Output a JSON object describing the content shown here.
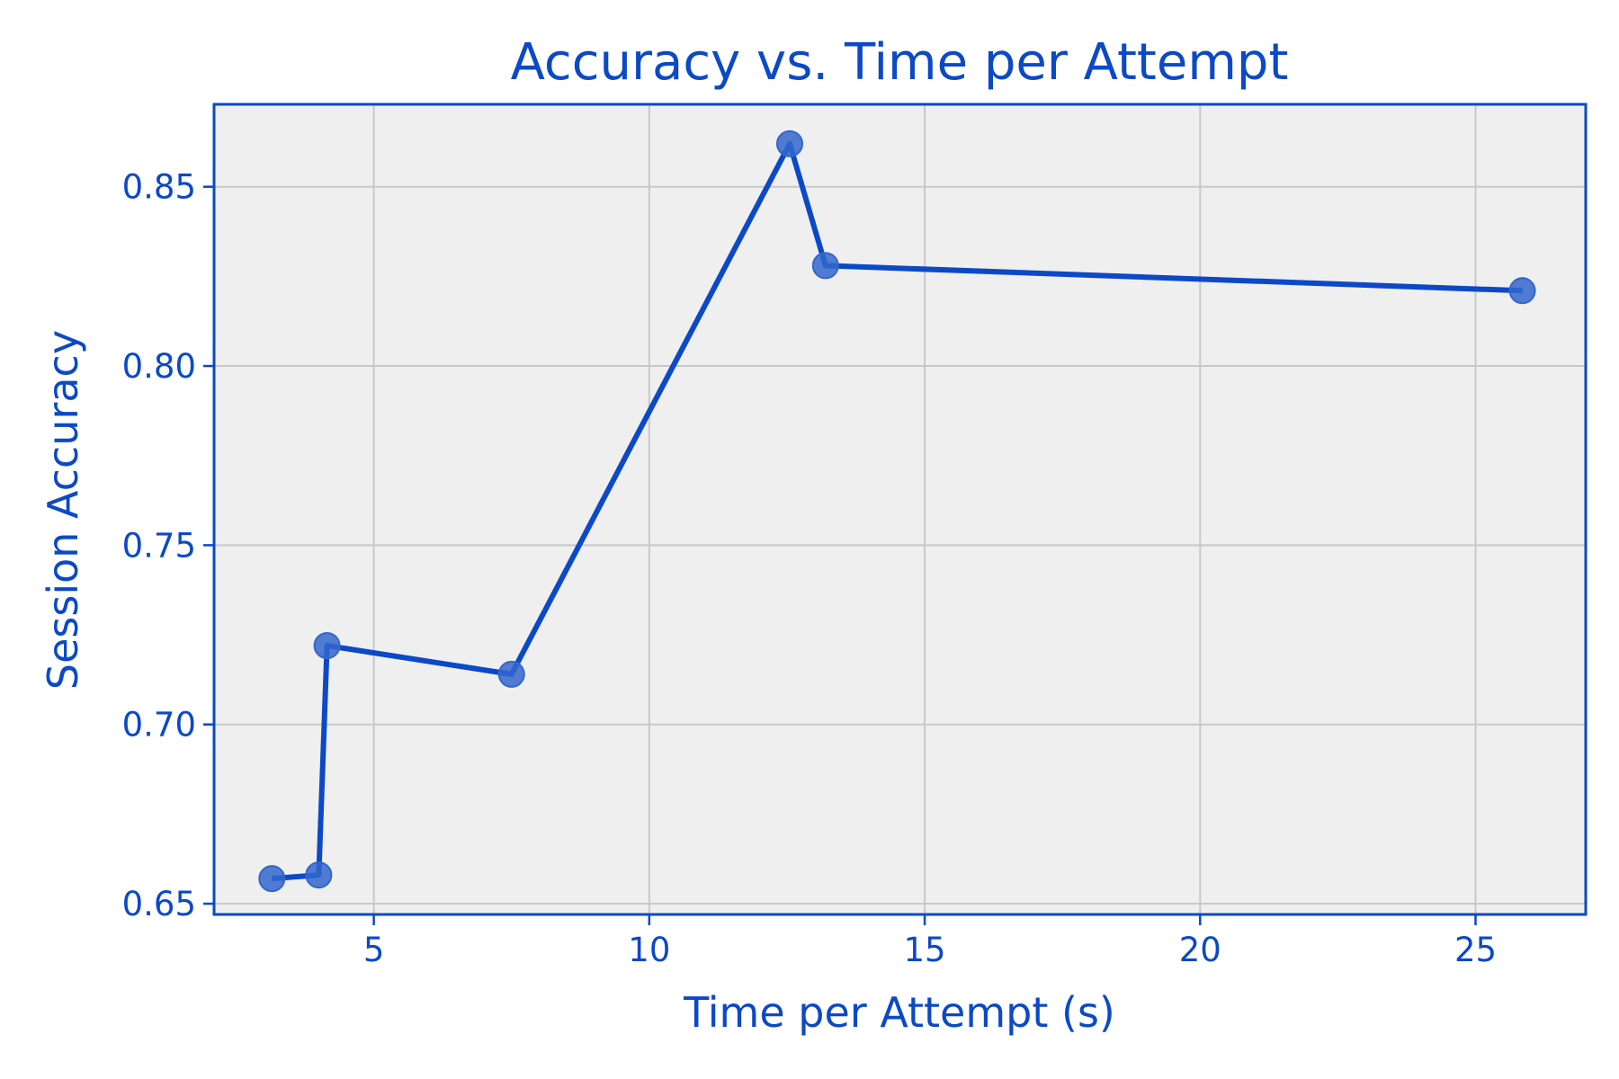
{
  "colors": {
    "accent": "#0b49c7",
    "plot_background": "#efefef",
    "grid": "#c8c8c8",
    "marker": "#3366cc"
  },
  "chart_data": {
    "type": "line",
    "title": "Accuracy vs. Time per Attempt",
    "xlabel": "Time per Attempt (s)",
    "ylabel": "Session Accuracy",
    "xlim": [
      2.1,
      27.0
    ],
    "ylim": [
      0.647,
      0.873
    ],
    "xticks": [
      5,
      10,
      15,
      20,
      25
    ],
    "yticks": [
      0.65,
      0.7,
      0.75,
      0.8,
      0.85
    ],
    "xtick_labels": [
      "5",
      "10",
      "15",
      "20",
      "25"
    ],
    "ytick_labels": [
      "0.65",
      "0.70",
      "0.75",
      "0.80",
      "0.85"
    ],
    "grid": true,
    "markers": true,
    "series": [
      {
        "points": [
          {
            "x": 3.15,
            "y": 0.657
          },
          {
            "x": 4.0,
            "y": 0.658
          },
          {
            "x": 4.15,
            "y": 0.722
          },
          {
            "x": 7.5,
            "y": 0.714
          },
          {
            "x": 12.55,
            "y": 0.862
          },
          {
            "x": 13.2,
            "y": 0.828
          },
          {
            "x": 25.85,
            "y": 0.821
          }
        ]
      }
    ]
  }
}
